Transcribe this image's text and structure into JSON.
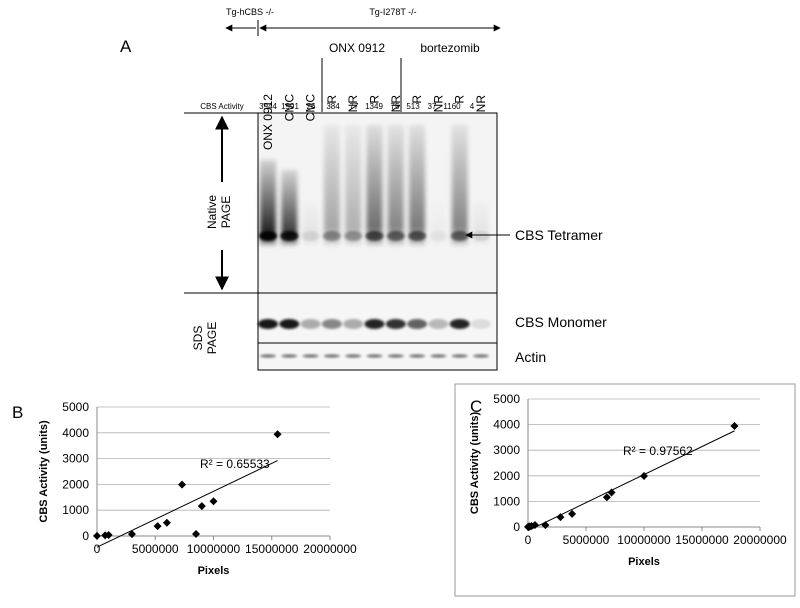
{
  "panel_a": {
    "label": "A",
    "groups": [
      "Tg-hCBS -/-",
      "Tg-I278T -/-"
    ],
    "lanes": [
      "ONX 0912",
      "CMC",
      "CMC",
      "R",
      "NR",
      "R",
      "NR",
      "R",
      "NR",
      "R",
      "NR"
    ],
    "treatments": [
      "ONX 0912",
      "bortezomib"
    ],
    "activity_label": "CBS Activity",
    "activity": [
      3944,
      1991,
      26,
      384,
      77,
      1349,
      75,
      513,
      37,
      1160,
      4
    ],
    "native_label": [
      "Native",
      "PAGE"
    ],
    "sds_label": [
      "SDS",
      "PAGE"
    ],
    "band_labels": [
      "CBS Tetramer",
      "CBS Monomer",
      "Actin"
    ]
  },
  "chart_data": [
    {
      "type": "scatter",
      "label": "B",
      "x_label": "Pixels",
      "y_label": "CBS Activity (units)",
      "annotation": "R² = 0.65533",
      "x": [
        0,
        700000,
        1000000,
        3000000,
        5200000,
        6000000,
        7300000,
        8500000,
        9000000,
        10000000,
        15500000
      ],
      "values": [
        4,
        26,
        37,
        75,
        384,
        513,
        1991,
        77,
        1160,
        1349,
        3944
      ],
      "color": "#000000",
      "trendline": true,
      "grid": true,
      "border": false,
      "xlim": [
        0,
        20000000
      ],
      "xticks": [
        0,
        5000000,
        10000000,
        15000000,
        20000000
      ],
      "ylim": [
        0,
        5000
      ],
      "yticks": [
        0,
        1000,
        2000,
        3000,
        4000,
        5000
      ]
    },
    {
      "type": "scatter",
      "label": "C",
      "x_label": "Pixels",
      "y_label": "CBS Activity (units)",
      "annotation": "R² = 0.97562",
      "x": [
        0,
        100000,
        300000,
        600000,
        1500000,
        2800000,
        3800000,
        6800000,
        7200000,
        10000000,
        17800000
      ],
      "values": [
        4,
        26,
        37,
        77,
        75,
        384,
        513,
        1160,
        1349,
        1991,
        3944
      ],
      "color": "#000000",
      "trendline": true,
      "grid": true,
      "border": true,
      "xlim": [
        0,
        20000000
      ],
      "xticks": [
        0,
        5000000,
        10000000,
        15000000,
        20000000
      ],
      "ylim": [
        0,
        5000
      ],
      "yticks": [
        0,
        1000,
        2000,
        3000,
        4000,
        5000
      ]
    }
  ]
}
